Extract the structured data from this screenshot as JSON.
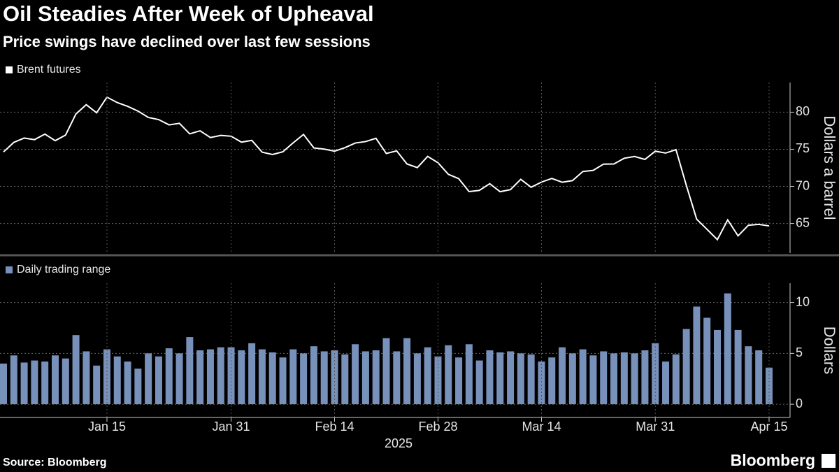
{
  "title": "Oil Steadies After Week of Upheaval",
  "subtitle": "Price swings have declined over last few sessions",
  "source": "Source: Bloomberg",
  "brand": "Bloomberg",
  "chart_data": [
    {
      "type": "line",
      "x": [
        "2024-12-31",
        "2025-01-02",
        "2025-01-03",
        "2025-01-06",
        "2025-01-07",
        "2025-01-08",
        "2025-01-09",
        "2025-01-10",
        "2025-01-13",
        "2025-01-14",
        "2025-01-15",
        "2025-01-16",
        "2025-01-17",
        "2025-01-20",
        "2025-01-21",
        "2025-01-22",
        "2025-01-23",
        "2025-01-24",
        "2025-01-27",
        "2025-01-28",
        "2025-01-29",
        "2025-01-30",
        "2025-01-31",
        "2025-02-03",
        "2025-02-04",
        "2025-02-05",
        "2025-02-06",
        "2025-02-07",
        "2025-02-10",
        "2025-02-11",
        "2025-02-12",
        "2025-02-13",
        "2025-02-14",
        "2025-02-17",
        "2025-02-18",
        "2025-02-19",
        "2025-02-20",
        "2025-02-21",
        "2025-02-24",
        "2025-02-25",
        "2025-02-26",
        "2025-02-27",
        "2025-02-28",
        "2025-03-03",
        "2025-03-04",
        "2025-03-05",
        "2025-03-06",
        "2025-03-07",
        "2025-03-10",
        "2025-03-11",
        "2025-03-12",
        "2025-03-13",
        "2025-03-14",
        "2025-03-17",
        "2025-03-18",
        "2025-03-19",
        "2025-03-20",
        "2025-03-21",
        "2025-03-24",
        "2025-03-25",
        "2025-03-26",
        "2025-03-27",
        "2025-03-28",
        "2025-03-31",
        "2025-04-01",
        "2025-04-02",
        "2025-04-03",
        "2025-04-04",
        "2025-04-07",
        "2025-04-08",
        "2025-04-09",
        "2025-04-10",
        "2025-04-11",
        "2025-04-14",
        "2025-04-15"
      ],
      "series": [
        {
          "name": "Brent futures",
          "color": "#ffffff",
          "values": [
            74.64,
            75.93,
            76.51,
            76.3,
            77.05,
            76.16,
            76.92,
            79.76,
            81.01,
            79.92,
            82.03,
            81.29,
            80.79,
            80.15,
            79.29,
            79.0,
            78.29,
            78.5,
            77.08,
            77.49,
            76.58,
            76.87,
            76.76,
            75.96,
            76.2,
            74.61,
            74.29,
            74.66,
            75.87,
            77.0,
            75.18,
            75.02,
            74.74,
            75.22,
            75.84,
            76.04,
            76.48,
            74.43,
            74.78,
            73.02,
            72.53,
            74.04,
            73.18,
            71.62,
            71.04,
            69.3,
            69.46,
            70.36,
            69.28,
            69.56,
            70.95,
            69.88,
            70.58,
            71.07,
            70.56,
            70.78,
            72.0,
            72.16,
            73.0,
            73.02,
            73.79,
            74.03,
            73.63,
            74.74,
            74.49,
            74.95,
            70.14,
            65.58,
            64.21,
            62.82,
            65.48,
            63.33,
            64.76,
            64.88,
            64.67
          ]
        }
      ],
      "ylabel": "Dollars a barrel",
      "ylim": [
        61,
        84
      ],
      "yticks": [
        65,
        70,
        75,
        80
      ],
      "grid": true
    },
    {
      "type": "bar",
      "x": [
        "2024-12-31",
        "2025-01-02",
        "2025-01-03",
        "2025-01-06",
        "2025-01-07",
        "2025-01-08",
        "2025-01-09",
        "2025-01-10",
        "2025-01-13",
        "2025-01-14",
        "2025-01-15",
        "2025-01-16",
        "2025-01-17",
        "2025-01-20",
        "2025-01-21",
        "2025-01-22",
        "2025-01-23",
        "2025-01-24",
        "2025-01-27",
        "2025-01-28",
        "2025-01-29",
        "2025-01-30",
        "2025-01-31",
        "2025-02-03",
        "2025-02-04",
        "2025-02-05",
        "2025-02-06",
        "2025-02-07",
        "2025-02-10",
        "2025-02-11",
        "2025-02-12",
        "2025-02-13",
        "2025-02-14",
        "2025-02-17",
        "2025-02-18",
        "2025-02-19",
        "2025-02-20",
        "2025-02-21",
        "2025-02-24",
        "2025-02-25",
        "2025-02-26",
        "2025-02-27",
        "2025-02-28",
        "2025-03-03",
        "2025-03-04",
        "2025-03-05",
        "2025-03-06",
        "2025-03-07",
        "2025-03-10",
        "2025-03-11",
        "2025-03-12",
        "2025-03-13",
        "2025-03-14",
        "2025-03-17",
        "2025-03-18",
        "2025-03-19",
        "2025-03-20",
        "2025-03-21",
        "2025-03-24",
        "2025-03-25",
        "2025-03-26",
        "2025-03-27",
        "2025-03-28",
        "2025-03-31",
        "2025-04-01",
        "2025-04-02",
        "2025-04-03",
        "2025-04-04",
        "2025-04-07",
        "2025-04-08",
        "2025-04-09",
        "2025-04-10",
        "2025-04-11",
        "2025-04-14",
        "2025-04-15"
      ],
      "series": [
        {
          "name": "Daily trading range",
          "color": "#7891bb",
          "values": [
            4.0,
            4.8,
            4.1,
            4.3,
            4.2,
            4.8,
            4.5,
            6.8,
            5.2,
            3.8,
            5.4,
            4.7,
            4.2,
            3.5,
            5.0,
            4.7,
            5.5,
            5.0,
            6.6,
            5.3,
            5.4,
            5.6,
            5.6,
            5.3,
            6.0,
            5.4,
            5.1,
            4.6,
            5.4,
            5.0,
            5.7,
            5.2,
            5.3,
            4.9,
            5.9,
            5.2,
            5.3,
            6.5,
            5.2,
            6.5,
            5.0,
            5.6,
            4.7,
            5.8,
            4.6,
            5.9,
            4.3,
            5.3,
            5.1,
            5.2,
            5.0,
            4.9,
            4.2,
            4.6,
            5.6,
            5.0,
            5.4,
            4.8,
            5.2,
            5.0,
            5.1,
            5.0,
            5.3,
            6.0,
            4.2,
            4.9,
            7.4,
            9.6,
            8.5,
            7.3,
            10.9,
            7.3,
            5.7,
            5.3,
            3.6
          ]
        }
      ],
      "ylabel": "Dollars",
      "xlabel": "2025",
      "ylim": [
        -1.3,
        11.9
      ],
      "yticks": [
        0,
        5,
        10
      ],
      "grid": true,
      "xticks": [
        {
          "value": "2025-01-15",
          "label": "Jan 15"
        },
        {
          "value": "2025-01-31",
          "label": "Jan 31"
        },
        {
          "value": "2025-02-14",
          "label": "Feb 14"
        },
        {
          "value": "2025-02-28",
          "label": "Feb 28"
        },
        {
          "value": "2025-03-14",
          "label": "Mar 14"
        },
        {
          "value": "2025-03-31",
          "label": "Mar 31"
        },
        {
          "value": "2025-04-15",
          "label": "Apr 15"
        }
      ]
    }
  ]
}
